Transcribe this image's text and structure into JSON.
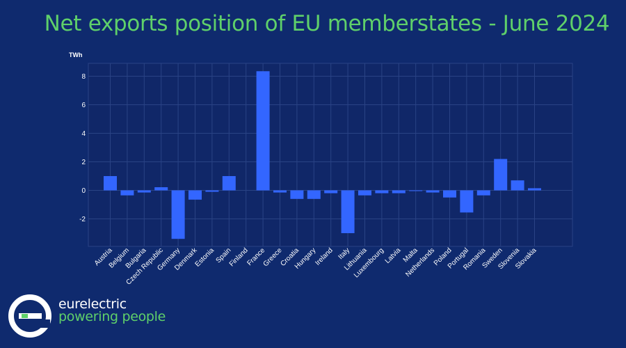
{
  "header": {
    "title": "Net exports position of EU memberstates  - June 2024"
  },
  "chart_data": {
    "type": "bar",
    "title": "Net exports position of EU memberstates  - June 2024",
    "ylabel": "TWh",
    "xlabel": "",
    "ylim": [
      -4,
      9
    ],
    "yticks": [
      -2,
      0,
      2,
      4,
      6,
      8
    ],
    "grid": true,
    "categories": [
      "Austria",
      "Belgium",
      "Bulgaria",
      "Czech Republic",
      "Germany",
      "Denmark",
      "Estonia",
      "Spain",
      "Finland",
      "France",
      "Greece",
      "Croatia",
      "Hungary",
      "Ireland",
      "Italy",
      "Lithuania",
      "Luxembourg",
      "Latvia",
      "Malta",
      "Netherlands",
      "Poland",
      "Portugal",
      "Romania",
      "Sweden",
      "Slovenia",
      "Slovakia"
    ],
    "values": [
      1.0,
      -0.35,
      -0.15,
      0.22,
      -3.4,
      -0.65,
      -0.1,
      1.0,
      0.0,
      8.35,
      -0.15,
      -0.6,
      -0.6,
      -0.2,
      -3.0,
      -0.35,
      -0.2,
      -0.2,
      -0.05,
      -0.15,
      -0.5,
      -1.55,
      -0.35,
      2.2,
      0.7,
      0.15
    ]
  },
  "colors": {
    "background": "#0f2a6e",
    "plot_background": "#102768",
    "bar": "#3366ff",
    "grid": "#2a4385",
    "title": "#5fd06a"
  },
  "branding": {
    "name": "eurelectric",
    "tagline": "powering people",
    "icon": "eurelectric-e-logo-icon"
  }
}
